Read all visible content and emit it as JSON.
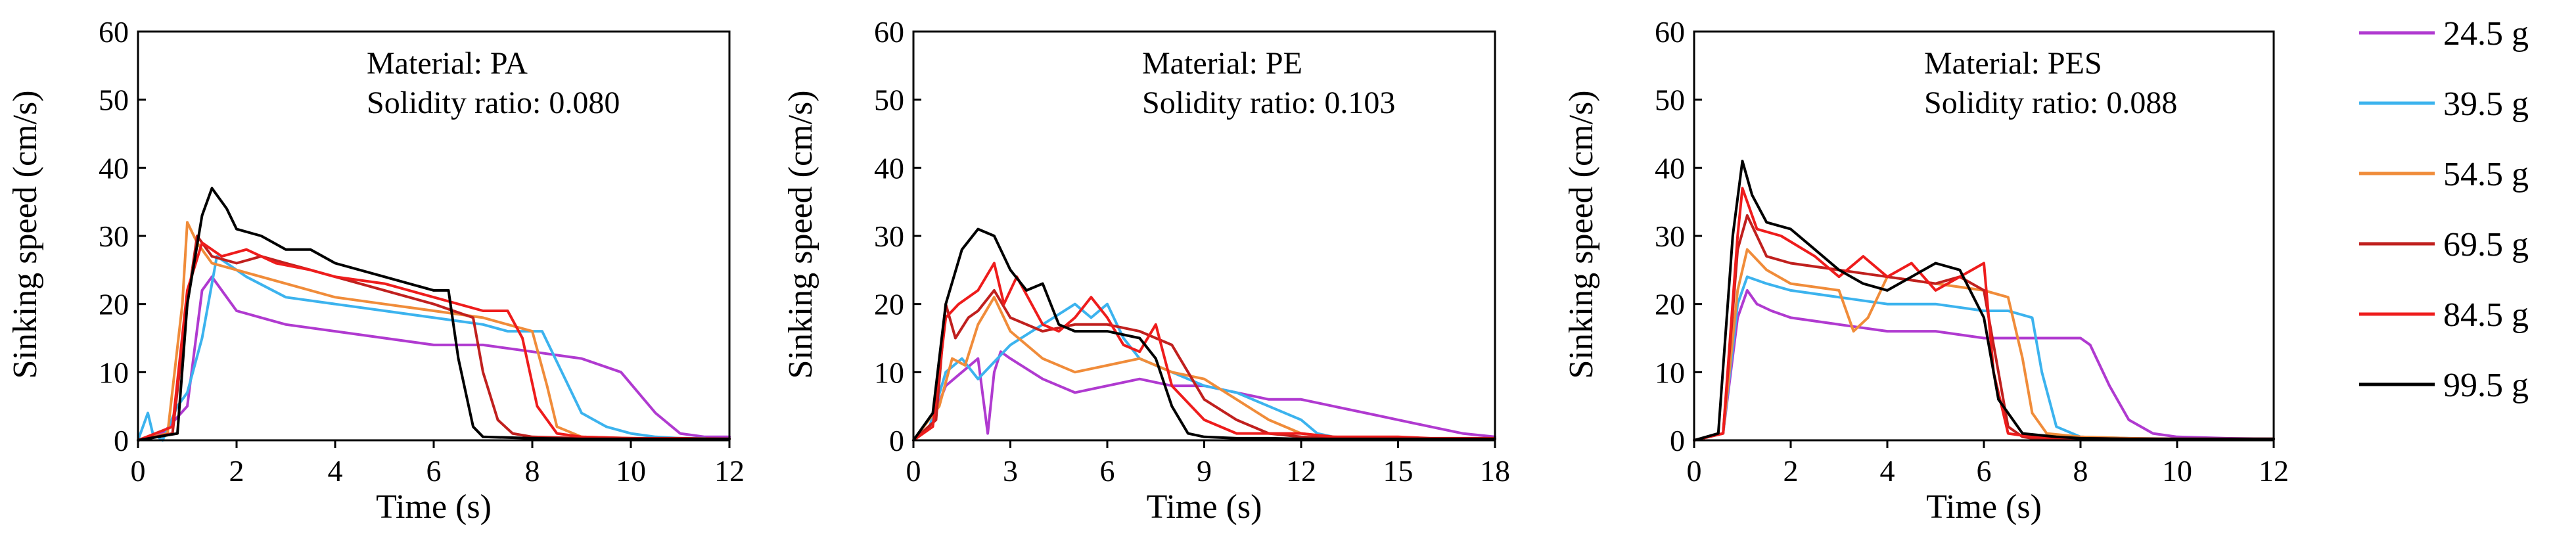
{
  "legend": [
    {
      "label": "24.5 g",
      "color": "#b03ad0"
    },
    {
      "label": "39.5 g",
      "color": "#3cb3ee"
    },
    {
      "label": "54.5 g",
      "color": "#f08c3a"
    },
    {
      "label": "69.5 g",
      "color": "#c0201e"
    },
    {
      "label": "84.5 g",
      "color": "#ee1c1c"
    },
    {
      "label": "99.5 g",
      "color": "#000000"
    }
  ],
  "chart_data": [
    {
      "type": "line",
      "xlabel": "Time (s)",
      "ylabel": "Sinking speed (cm/s)",
      "xlim": [
        0,
        12
      ],
      "ylim": [
        0,
        60
      ],
      "xticks": [
        0,
        2,
        4,
        6,
        8,
        10,
        12
      ],
      "yticks": [
        0,
        10,
        20,
        30,
        40,
        50,
        60
      ],
      "annotation": [
        "Material:  PA",
        "Solidity ratio:  0.080"
      ],
      "series": [
        {
          "name": "24.5 g",
          "x": [
            0,
            0.5,
            1.0,
            1.3,
            1.5,
            1.8,
            2.0,
            2.5,
            3.0,
            4,
            5,
            6,
            7,
            8,
            9,
            9.8,
            10.5,
            11,
            11.5,
            12
          ],
          "y": [
            0,
            1,
            5,
            22,
            24,
            21,
            19,
            18,
            17,
            16,
            15,
            14,
            14,
            13,
            12,
            10,
            4,
            1,
            0.5,
            0.5
          ]
        },
        {
          "name": "39.5 g",
          "x": [
            0,
            0.2,
            0.3,
            0.5,
            0.8,
            1.0,
            1.3,
            1.6,
            1.8,
            2.2,
            3,
            4,
            5,
            6,
            7,
            7.5,
            8.2,
            8.6,
            9,
            9.5,
            10,
            10.5,
            11,
            11.5
          ],
          "y": [
            0,
            4,
            1,
            0,
            5,
            7,
            15,
            27,
            26,
            24,
            21,
            20,
            19,
            18,
            17,
            16,
            16,
            10,
            4,
            2,
            1,
            0.5,
            0.3,
            0.3
          ]
        },
        {
          "name": "54.5 g",
          "x": [
            0,
            0.6,
            0.9,
            1.0,
            1.2,
            1.5,
            2,
            3,
            4,
            5,
            6,
            7,
            7.5,
            8.0,
            8.3,
            8.5,
            9,
            10,
            11,
            12
          ],
          "y": [
            0,
            1,
            20,
            32,
            29,
            26,
            25,
            23,
            21,
            20,
            19,
            18,
            17,
            16,
            8,
            2,
            0.5,
            0.3,
            0.2,
            0.2
          ]
        },
        {
          "name": "69.5 g",
          "x": [
            0,
            0.7,
            1.0,
            1.2,
            1.5,
            2,
            2.5,
            3,
            3.5,
            4,
            5,
            6,
            6.8,
            7.0,
            7.3,
            7.6,
            8,
            9,
            10,
            11,
            12
          ],
          "y": [
            0,
            1,
            20,
            30,
            27,
            26,
            27,
            26,
            25,
            24,
            22,
            20,
            18,
            10,
            3,
            1,
            0.5,
            0.3,
            0.3,
            0.2,
            0.2
          ]
        },
        {
          "name": "84.5 g",
          "x": [
            0,
            0.7,
            1.0,
            1.3,
            1.7,
            2.2,
            2.8,
            3.5,
            4,
            5,
            6,
            7,
            7.5,
            7.8,
            8.1,
            8.5,
            9,
            10,
            11,
            12
          ],
          "y": [
            0,
            2,
            22,
            29,
            27,
            28,
            26,
            25,
            24,
            23,
            21,
            19,
            19,
            15,
            5,
            1,
            0.5,
            0.3,
            0.3,
            0.2
          ]
        },
        {
          "name": "99.5 g",
          "x": [
            0,
            0.8,
            1.0,
            1.3,
            1.5,
            1.8,
            2.0,
            2.5,
            3,
            3.5,
            4,
            5,
            6,
            6.3,
            6.5,
            6.8,
            7,
            8,
            9,
            10,
            11,
            12
          ],
          "y": [
            0,
            1,
            20,
            33,
            37,
            34,
            31,
            30,
            28,
            28,
            26,
            24,
            22,
            22,
            12,
            2,
            0.5,
            0.3,
            0.2,
            0.2,
            0.2,
            0.2
          ]
        }
      ]
    },
    {
      "type": "line",
      "xlabel": "Time (s)",
      "ylabel": "Sinking speed (cm/s)",
      "xlim": [
        0,
        18
      ],
      "ylim": [
        0,
        60
      ],
      "xticks": [
        0,
        3,
        6,
        9,
        12,
        15,
        18
      ],
      "yticks": [
        0,
        10,
        20,
        30,
        40,
        50,
        60
      ],
      "annotation": [
        "Material:  PE",
        "Solidity ratio:  0.103"
      ],
      "series": [
        {
          "name": "24.5 g",
          "x": [
            0,
            0.5,
            1.0,
            1.5,
            2.0,
            2.3,
            2.5,
            2.7,
            3.0,
            4,
            5,
            6,
            7,
            8,
            9,
            10,
            11,
            12,
            13,
            14,
            15,
            16,
            17,
            18
          ],
          "y": [
            0,
            2,
            8,
            10,
            12,
            1,
            10,
            13,
            12,
            9,
            7,
            8,
            9,
            8,
            8,
            7,
            6,
            6,
            5,
            4,
            3,
            2,
            1,
            0.5
          ]
        },
        {
          "name": "39.5 g",
          "x": [
            0,
            0.5,
            1.0,
            1.5,
            2,
            3,
            4,
            5,
            5.5,
            6,
            6.5,
            7,
            8,
            9,
            10,
            11,
            12,
            12.5,
            13,
            14,
            15,
            16,
            17,
            18
          ],
          "y": [
            0,
            2,
            10,
            12,
            9,
            14,
            17,
            20,
            18,
            20,
            15,
            12,
            10,
            8,
            7,
            5,
            3,
            1,
            0.5,
            0.3,
            0.3,
            0.2,
            0.2,
            0.2
          ]
        },
        {
          "name": "54.5 g",
          "x": [
            0,
            0.8,
            1.2,
            1.6,
            2.0,
            2.5,
            3,
            4,
            5,
            6,
            7,
            8,
            9,
            10,
            11,
            12,
            13,
            14,
            15,
            16,
            17,
            18
          ],
          "y": [
            0,
            5,
            12,
            11,
            17,
            21,
            16,
            12,
            10,
            11,
            12,
            10,
            9,
            6,
            3,
            1,
            0.5,
            0.3,
            0.3,
            0.2,
            0.2,
            0.2
          ]
        },
        {
          "name": "69.5 g",
          "x": [
            0,
            0.7,
            1.0,
            1.3,
            1.7,
            2.0,
            2.5,
            3,
            4,
            5,
            6,
            7,
            8,
            8.5,
            9,
            10,
            11,
            12,
            13,
            14,
            15,
            16,
            17,
            18
          ],
          "y": [
            0,
            3,
            20,
            15,
            18,
            19,
            22,
            18,
            16,
            17,
            17,
            16,
            14,
            10,
            6,
            3,
            1,
            0.5,
            0.3,
            0.3,
            0.2,
            0.2,
            0.2,
            0.2
          ]
        },
        {
          "name": "84.5 g",
          "x": [
            0,
            0.6,
            1.0,
            1.4,
            2.0,
            2.5,
            2.8,
            3.2,
            4,
            4.5,
            5,
            5.5,
            6,
            6.5,
            7,
            7.5,
            8,
            9,
            10,
            11,
            12,
            13,
            14,
            15,
            16,
            17,
            18
          ],
          "y": [
            0,
            2,
            18,
            20,
            22,
            26,
            20,
            24,
            17,
            16,
            18,
            21,
            18,
            14,
            13,
            17,
            8,
            3,
            1,
            1,
            1,
            0.5,
            0.5,
            0.5,
            0.3,
            0.3,
            0.3
          ]
        },
        {
          "name": "99.5 g",
          "x": [
            0,
            0.6,
            1.0,
            1.5,
            2.0,
            2.5,
            3.0,
            3.5,
            4,
            4.5,
            5,
            6,
            7,
            7.5,
            8,
            8.5,
            9,
            10,
            11,
            12,
            13,
            14,
            15,
            16,
            17,
            18
          ],
          "y": [
            0,
            4,
            20,
            28,
            31,
            30,
            25,
            22,
            23,
            17,
            16,
            16,
            15,
            12,
            5,
            1,
            0.5,
            0.3,
            0.3,
            0.2,
            0.2,
            0.2,
            0.2,
            0.2,
            0.2,
            0.2
          ]
        }
      ]
    },
    {
      "type": "line",
      "xlabel": "Time (s)",
      "ylabel": "Sinking speed (cm/s)",
      "xlim": [
        0,
        12
      ],
      "ylim": [
        0,
        60
      ],
      "xticks": [
        0,
        2,
        4,
        6,
        8,
        10,
        12
      ],
      "yticks": [
        0,
        10,
        20,
        30,
        40,
        50,
        60
      ],
      "annotation": [
        "Material:  PES",
        "Solidity ratio:  0.088"
      ],
      "series": [
        {
          "name": "24.5 g",
          "x": [
            0,
            0.6,
            0.9,
            1.1,
            1.3,
            1.6,
            2,
            3,
            4,
            5,
            6,
            7,
            7.5,
            8.0,
            8.2,
            8.6,
            9,
            9.5,
            10,
            11,
            12
          ],
          "y": [
            0,
            1,
            18,
            22,
            20,
            19,
            18,
            17,
            16,
            16,
            15,
            15,
            15,
            15,
            14,
            8,
            3,
            1,
            0.5,
            0.3,
            0.2
          ]
        },
        {
          "name": "39.5 g",
          "x": [
            0,
            0.6,
            0.9,
            1.1,
            1.5,
            2,
            3,
            4,
            5,
            6,
            6.5,
            7.0,
            7.2,
            7.5,
            8,
            9,
            10,
            11,
            12
          ],
          "y": [
            0,
            1,
            20,
            24,
            23,
            22,
            21,
            20,
            20,
            19,
            19,
            18,
            10,
            2,
            0.5,
            0.3,
            0.2,
            0.2,
            0.2
          ]
        },
        {
          "name": "54.5 g",
          "x": [
            0,
            0.6,
            0.9,
            1.1,
            1.5,
            2,
            3,
            3.3,
            3.6,
            4,
            5,
            6,
            6.5,
            6.8,
            7.0,
            7.3,
            8,
            9,
            10,
            11,
            12
          ],
          "y": [
            0,
            1,
            22,
            28,
            25,
            23,
            22,
            16,
            18,
            24,
            23,
            22,
            21,
            12,
            4,
            1,
            0.5,
            0.3,
            0.2,
            0.2,
            0.2
          ]
        },
        {
          "name": "69.5 g",
          "x": [
            0,
            0.6,
            0.9,
            1.1,
            1.5,
            2,
            3,
            4,
            5,
            5.5,
            6,
            6.3,
            6.5,
            6.8,
            7,
            8,
            9,
            10,
            11,
            12
          ],
          "y": [
            0,
            1,
            28,
            33,
            27,
            26,
            25,
            24,
            23,
            24,
            22,
            10,
            2,
            0.5,
            0.3,
            0.3,
            0.2,
            0.2,
            0.2,
            0.2
          ]
        },
        {
          "name": "84.5 g",
          "x": [
            0,
            0.6,
            0.9,
            1.0,
            1.3,
            1.8,
            2.5,
            3.0,
            3.5,
            4,
            4.5,
            5,
            5.5,
            6,
            6.2,
            6.5,
            7,
            8,
            9,
            10,
            11,
            12
          ],
          "y": [
            0,
            1,
            30,
            37,
            31,
            30,
            27,
            24,
            27,
            24,
            26,
            22,
            24,
            26,
            10,
            1,
            0.5,
            0.3,
            0.2,
            0.2,
            0.2,
            0.2
          ]
        },
        {
          "name": "99.5 g",
          "x": [
            0,
            0.5,
            0.8,
            1.0,
            1.2,
            1.5,
            2,
            2.5,
            3,
            3.5,
            4,
            4.5,
            5,
            5.5,
            6,
            6.3,
            6.8,
            7.5,
            8,
            9,
            10,
            11,
            12
          ],
          "y": [
            0,
            1,
            30,
            41,
            36,
            32,
            31,
            28,
            25,
            23,
            22,
            24,
            26,
            25,
            18,
            6,
            1,
            0.5,
            0.3,
            0.2,
            0.2,
            0.2,
            0.2
          ]
        }
      ]
    }
  ]
}
